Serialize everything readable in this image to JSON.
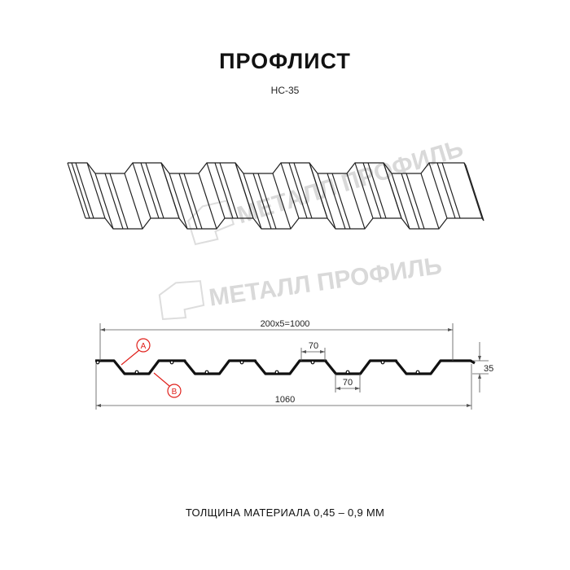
{
  "title": "ПРОФЛИСТ",
  "model": "НС-35",
  "watermark": "МЕТАЛЛ ПРОФИЛЬ",
  "dimensions": {
    "pitch_total": "200x5=1000",
    "full_width": "1060",
    "crest_width": "70",
    "valley_width": "70",
    "height": "35"
  },
  "markers": {
    "a": "A",
    "b": "B"
  },
  "thickness_note": "ТОЛЩИНА МАТЕРИАЛА 0,45 – 0,9 ММ",
  "colors": {
    "profile": "#111111",
    "marker": "#e0201b",
    "watermark": "#d6d6d6"
  }
}
